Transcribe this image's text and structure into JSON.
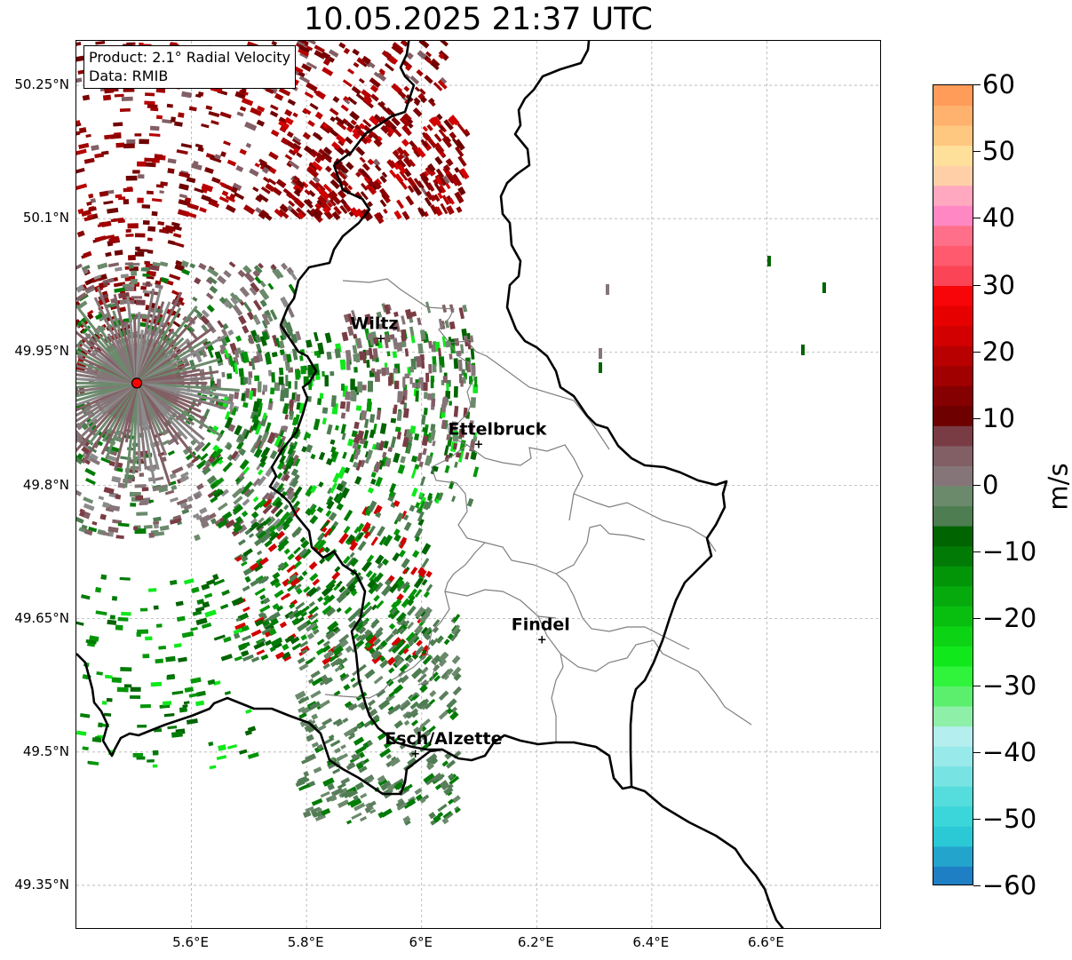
{
  "title": "10.05.2025 21:37 UTC",
  "info": {
    "product": "Product: 2.1° Radial Velocity",
    "data": "Data: RMIB"
  },
  "map": {
    "lon_range": [
      5.4,
      6.8
    ],
    "lat_range": [
      49.3,
      50.3
    ],
    "lat_ticks": [
      {
        "value": 50.25,
        "label": "50.25°N"
      },
      {
        "value": 50.1,
        "label": "50.1°N"
      },
      {
        "value": 49.95,
        "label": "49.95°N"
      },
      {
        "value": 49.8,
        "label": "49.8°N"
      },
      {
        "value": 49.65,
        "label": "49.65°N"
      },
      {
        "value": 49.5,
        "label": "49.5°N"
      },
      {
        "value": 49.35,
        "label": "49.35°N"
      }
    ],
    "lon_ticks": [
      {
        "value": 5.6,
        "label": "5.6°E"
      },
      {
        "value": 5.8,
        "label": "5.8°E"
      },
      {
        "value": 6.0,
        "label": "6°E"
      },
      {
        "value": 6.2,
        "label": "6.2°E"
      },
      {
        "value": 6.4,
        "label": "6.4°E"
      },
      {
        "value": 6.6,
        "label": "6.6°E"
      }
    ],
    "grid": true,
    "radar_site": {
      "lon": 5.505,
      "lat": 49.915,
      "color": "#ff0000"
    },
    "cities": [
      {
        "name": "Wiltz",
        "lon": 5.93,
        "lat": 49.966
      },
      {
        "name": "Ettelbruck",
        "lon": 6.1,
        "lat": 49.847
      },
      {
        "name": "Findel",
        "lon": 6.21,
        "lat": 49.627
      },
      {
        "name": "Esch/Alzette",
        "lon": 5.99,
        "lat": 49.499
      }
    ]
  },
  "colorbar": {
    "min": -60,
    "max": 60,
    "unit": "m/s",
    "ticks": [
      {
        "value": 60,
        "label": "60"
      },
      {
        "value": 50,
        "label": "50"
      },
      {
        "value": 40,
        "label": "40"
      },
      {
        "value": 30,
        "label": "30"
      },
      {
        "value": 20,
        "label": "20"
      },
      {
        "value": 10,
        "label": "10"
      },
      {
        "value": 0,
        "label": "0"
      },
      {
        "value": -10,
        "label": "−10"
      },
      {
        "value": -20,
        "label": "−20"
      },
      {
        "value": -30,
        "label": "−30"
      },
      {
        "value": -40,
        "label": "−40"
      },
      {
        "value": -50,
        "label": "−50"
      },
      {
        "value": -60,
        "label": "−60"
      }
    ],
    "bands": [
      {
        "from": -60,
        "to": -57,
        "color": "#1f7fc4"
      },
      {
        "from": -57,
        "to": -54,
        "color": "#23a4cc"
      },
      {
        "from": -54,
        "to": -51,
        "color": "#2bc9d6"
      },
      {
        "from": -51,
        "to": -48,
        "color": "#3ad6d9"
      },
      {
        "from": -48,
        "to": -45,
        "color": "#55dcdc"
      },
      {
        "from": -45,
        "to": -42,
        "color": "#78e3e3"
      },
      {
        "from": -42,
        "to": -39,
        "color": "#98e9e9"
      },
      {
        "from": -39,
        "to": -36,
        "color": "#b4eeee"
      },
      {
        "from": -36,
        "to": -33,
        "color": "#8ef0a8"
      },
      {
        "from": -33,
        "to": -30,
        "color": "#5cef6e"
      },
      {
        "from": -30,
        "to": -27,
        "color": "#30f43c"
      },
      {
        "from": -27,
        "to": -24,
        "color": "#10e81c"
      },
      {
        "from": -24,
        "to": -21,
        "color": "#0cd414"
      },
      {
        "from": -21,
        "to": -18,
        "color": "#08bf10"
      },
      {
        "from": -18,
        "to": -15,
        "color": "#06aa0c"
      },
      {
        "from": -15,
        "to": -12,
        "color": "#039508"
      },
      {
        "from": -12,
        "to": -9,
        "color": "#017b06"
      },
      {
        "from": -9,
        "to": -6,
        "color": "#006400"
      },
      {
        "from": -6,
        "to": -3,
        "color": "#4e7d52"
      },
      {
        "from": -3,
        "to": 0,
        "color": "#6b8a6c"
      },
      {
        "from": 0,
        "to": 3,
        "color": "#857578"
      },
      {
        "from": 3,
        "to": 6,
        "color": "#825f65"
      },
      {
        "from": 6,
        "to": 9,
        "color": "#7a3c44"
      },
      {
        "from": 9,
        "to": 12,
        "color": "#6e0000"
      },
      {
        "from": 12,
        "to": 15,
        "color": "#850000"
      },
      {
        "from": 15,
        "to": 18,
        "color": "#a00000"
      },
      {
        "from": 18,
        "to": 21,
        "color": "#b90000"
      },
      {
        "from": 21,
        "to": 24,
        "color": "#d20000"
      },
      {
        "from": 24,
        "to": 27,
        "color": "#e60000"
      },
      {
        "from": 27,
        "to": 30,
        "color": "#f70508"
      },
      {
        "from": 30,
        "to": 33,
        "color": "#fb4455"
      },
      {
        "from": 33,
        "to": 36,
        "color": "#ff5a6e"
      },
      {
        "from": 36,
        "to": 39,
        "color": "#ff6f8a"
      },
      {
        "from": 39,
        "to": 42,
        "color": "#ff88c4"
      },
      {
        "from": 42,
        "to": 45,
        "color": "#ffa8c0"
      },
      {
        "from": 45,
        "to": 48,
        "color": "#ffd0a8"
      },
      {
        "from": 48,
        "to": 51,
        "color": "#ffe09a"
      },
      {
        "from": 51,
        "to": 54,
        "color": "#ffc880"
      },
      {
        "from": 54,
        "to": 57,
        "color": "#ffb26e"
      },
      {
        "from": 57,
        "to": 60,
        "color": "#ff9c5a"
      }
    ]
  }
}
